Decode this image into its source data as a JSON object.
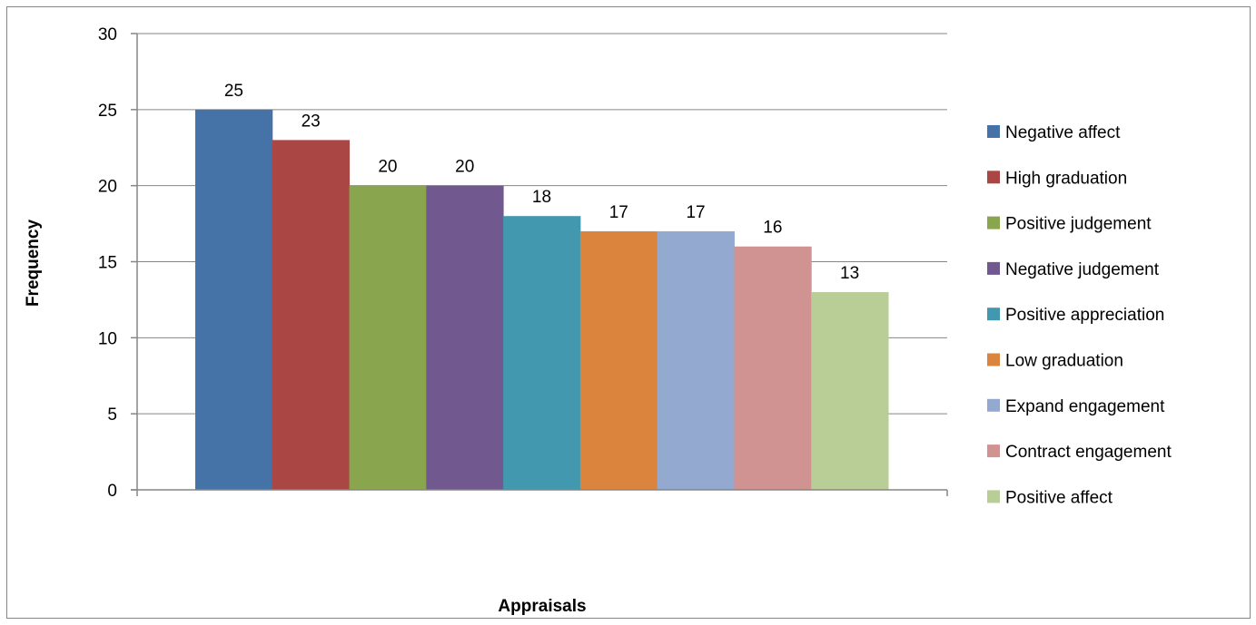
{
  "chart_data": {
    "type": "bar",
    "title": "",
    "xlabel": "Appraisals",
    "ylabel": "Frequency",
    "ylim": [
      0,
      30
    ],
    "yticks": [
      0,
      5,
      10,
      15,
      20,
      25,
      30
    ],
    "grid": true,
    "legend_position": "right",
    "categories": [
      "Negative affect",
      "High graduation",
      "Positive judgement",
      "Negative judgement",
      "Positive appreciation",
      "Low graduation",
      "Expand engagement",
      "Contract engagement",
      "Positive affect"
    ],
    "values": [
      25,
      23,
      20,
      20,
      18,
      17,
      17,
      16,
      13
    ],
    "colors": [
      "#4572A7",
      "#AA4643",
      "#89A54E",
      "#71588F",
      "#4198AF",
      "#DB843D",
      "#93A9CF",
      "#D19392",
      "#B9CD96"
    ]
  }
}
